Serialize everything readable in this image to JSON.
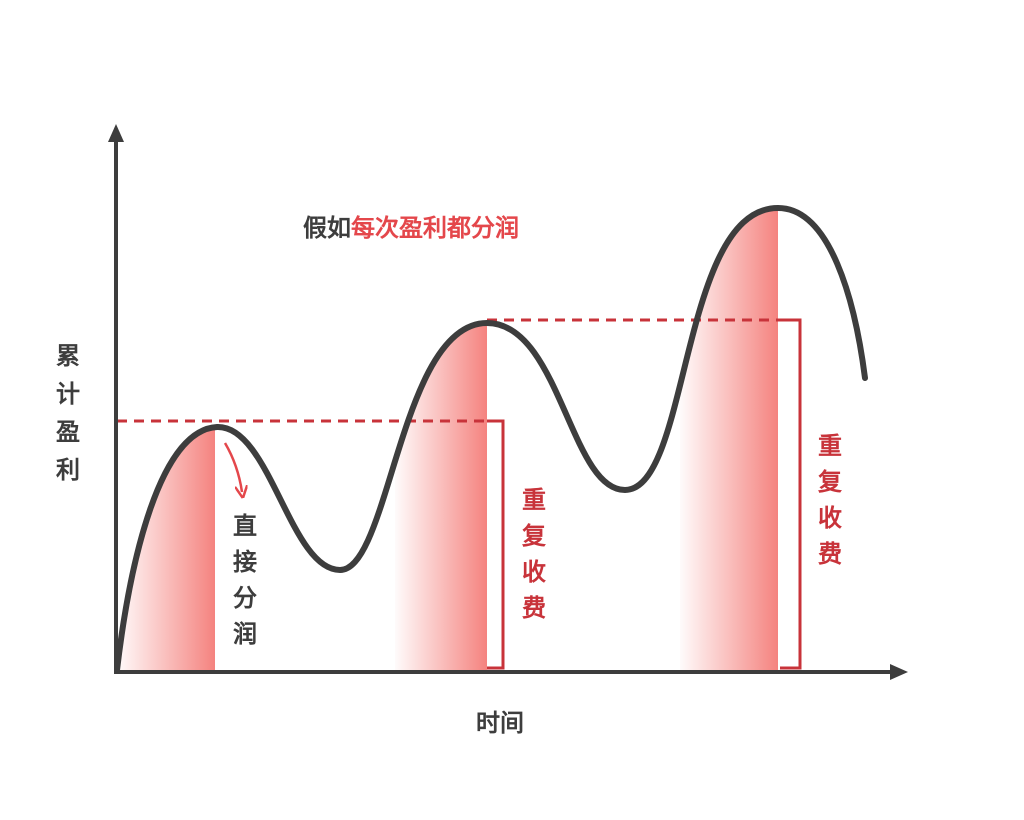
{
  "title": {
    "prefix": "假如",
    "highlight": "每次盈利都分润"
  },
  "y_axis_label": "累计盈利",
  "x_axis_label": "时间",
  "annotation_direct": "直接分润",
  "annotation_repeat_1": "重复收费",
  "annotation_repeat_2": "重复收费",
  "colors": {
    "curve": "#3d3d3d",
    "accent": "#c8333a",
    "fill": "#f47c78",
    "title_highlight": "#e4474b"
  }
}
